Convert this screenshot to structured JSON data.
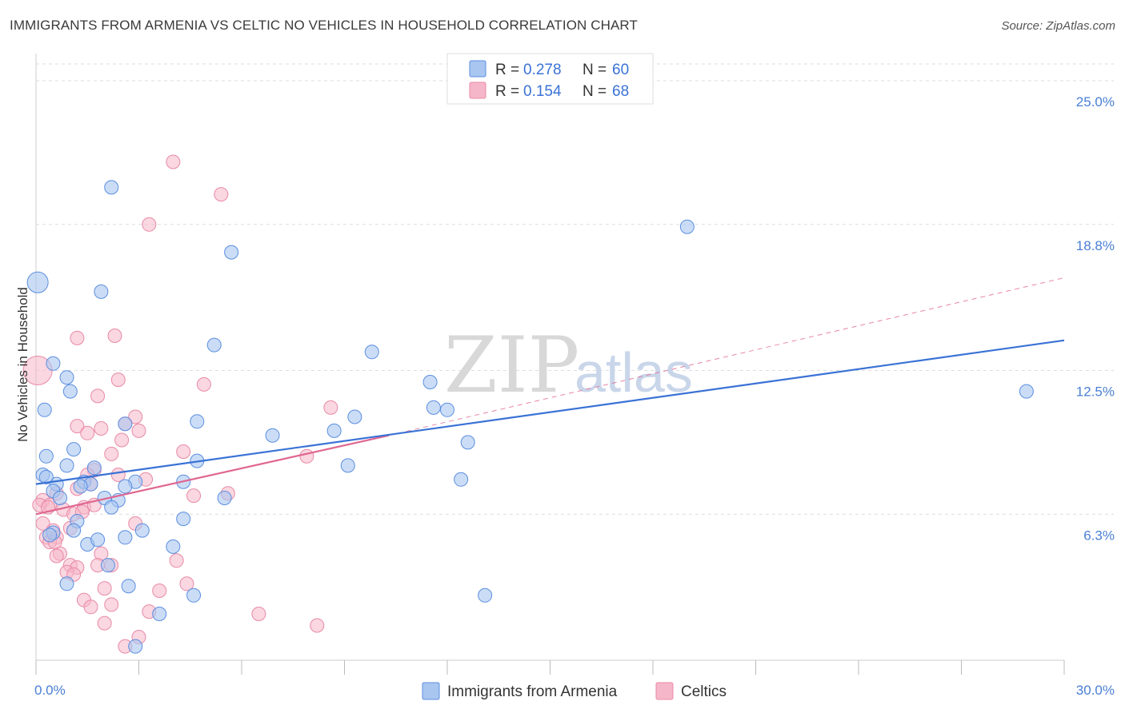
{
  "title": "IMMIGRANTS FROM ARMENIA VS CELTIC NO VEHICLES IN HOUSEHOLD CORRELATION CHART",
  "source": "Source: ZipAtlas.com",
  "watermark": {
    "part1": "ZIP",
    "part2": "atlas"
  },
  "colors": {
    "blue_fill": "#a9c6f0",
    "blue_stroke": "#5b8ee0",
    "blue_line": "#3a72d6",
    "pink_fill": "#f6b6c9",
    "pink_stroke": "#e88aa6",
    "pink_line": "#e06690",
    "grid": "#dddddd",
    "tick_label": "#4a7fd4"
  },
  "legend_top": [
    {
      "r_label": "R = ",
      "r_value": "0.278",
      "n_label": "N = ",
      "n_value": "60"
    },
    {
      "r_label": "R = ",
      "r_value": "0.154",
      "n_label": "N = ",
      "n_value": "68"
    }
  ],
  "chart_data": {
    "type": "scatter",
    "title": "IMMIGRANTS FROM ARMENIA VS CELTIC NO VEHICLES IN HOUSEHOLD CORRELATION CHART",
    "xlabel": "",
    "ylabel": "No Vehicles in Household",
    "xlim": [
      0,
      30
    ],
    "ylim": [
      0,
      26
    ],
    "x_tick_labels": [
      {
        "value": 0,
        "label": "0.0%"
      },
      {
        "value": 30,
        "label": "30.0%"
      }
    ],
    "y_tick_labels": [
      {
        "value": 6.3,
        "label": "6.3%"
      },
      {
        "value": 12.5,
        "label": "12.5%"
      },
      {
        "value": 18.8,
        "label": "18.8%"
      },
      {
        "value": 25.0,
        "label": "25.0%"
      }
    ],
    "x_minor_ticks": [
      0,
      3,
      6,
      9,
      12,
      15,
      18,
      21,
      24,
      27,
      30
    ],
    "grid": true,
    "legend_position": "top-center",
    "series": [
      {
        "name": "Immigrants from Armenia",
        "R": 0.278,
        "N": 60,
        "color": "#a9c6f0",
        "trend": {
          "x0": 0,
          "y0": 7.6,
          "x1": 30,
          "y1": 13.8,
          "style": "solid"
        },
        "points": [
          [
            0.05,
            16.3
          ],
          [
            2.2,
            20.4
          ],
          [
            5.7,
            17.6
          ],
          [
            1.9,
            15.9
          ],
          [
            19.0,
            18.7
          ],
          [
            28.9,
            11.6
          ],
          [
            5.2,
            13.6
          ],
          [
            9.8,
            13.3
          ],
          [
            0.5,
            12.8
          ],
          [
            0.9,
            12.2
          ],
          [
            1.0,
            11.6
          ],
          [
            11.5,
            12.0
          ],
          [
            11.6,
            10.9
          ],
          [
            12.0,
            10.8
          ],
          [
            0.25,
            10.8
          ],
          [
            2.6,
            10.2
          ],
          [
            4.7,
            10.3
          ],
          [
            9.3,
            10.5
          ],
          [
            6.9,
            9.7
          ],
          [
            8.7,
            9.9
          ],
          [
            12.6,
            9.4
          ],
          [
            0.3,
            8.8
          ],
          [
            1.1,
            9.1
          ],
          [
            0.9,
            8.4
          ],
          [
            4.7,
            8.6
          ],
          [
            9.1,
            8.4
          ],
          [
            1.7,
            8.3
          ],
          [
            0.2,
            8.0
          ],
          [
            0.6,
            7.6
          ],
          [
            1.4,
            7.7
          ],
          [
            2.9,
            7.7
          ],
          [
            4.3,
            7.7
          ],
          [
            12.4,
            7.8
          ],
          [
            2.6,
            7.5
          ],
          [
            1.6,
            7.6
          ],
          [
            0.5,
            7.3
          ],
          [
            0.7,
            7.0
          ],
          [
            2.0,
            7.0
          ],
          [
            2.4,
            6.9
          ],
          [
            5.5,
            7.0
          ],
          [
            2.2,
            6.6
          ],
          [
            1.2,
            6.0
          ],
          [
            4.3,
            6.1
          ],
          [
            1.1,
            5.6
          ],
          [
            0.5,
            5.5
          ],
          [
            1.5,
            5.0
          ],
          [
            1.8,
            5.2
          ],
          [
            2.6,
            5.3
          ],
          [
            4.0,
            4.9
          ],
          [
            0.9,
            3.3
          ],
          [
            2.7,
            3.2
          ],
          [
            2.1,
            4.1
          ],
          [
            4.6,
            2.8
          ],
          [
            13.1,
            2.8
          ],
          [
            3.6,
            2.0
          ],
          [
            2.9,
            0.6
          ],
          [
            0.3,
            7.9
          ],
          [
            0.4,
            5.4
          ],
          [
            1.3,
            7.5
          ],
          [
            3.1,
            5.6
          ]
        ]
      },
      {
        "name": "Celtics",
        "R": 0.154,
        "N": 68,
        "color": "#f6b6c9",
        "trend": {
          "x0": 0,
          "y0": 6.3,
          "x1": 10.3,
          "y1": 9.7,
          "style": "solid"
        },
        "trend_extension": {
          "x0": 10.3,
          "y0": 9.7,
          "x1": 30,
          "y1": 16.5,
          "style": "dashed"
        },
        "points": [
          [
            0.05,
            12.5
          ],
          [
            4.0,
            21.5
          ],
          [
            5.4,
            20.1
          ],
          [
            3.3,
            18.8
          ],
          [
            1.2,
            13.9
          ],
          [
            2.3,
            14.0
          ],
          [
            2.4,
            12.1
          ],
          [
            4.9,
            11.9
          ],
          [
            1.8,
            11.4
          ],
          [
            8.6,
            10.9
          ],
          [
            2.9,
            10.5
          ],
          [
            1.2,
            10.1
          ],
          [
            1.9,
            10.0
          ],
          [
            3.0,
            9.9
          ],
          [
            2.6,
            10.2
          ],
          [
            2.5,
            9.5
          ],
          [
            1.5,
            9.8
          ],
          [
            4.3,
            9.0
          ],
          [
            2.2,
            8.9
          ],
          [
            7.9,
            8.8
          ],
          [
            1.7,
            8.2
          ],
          [
            2.4,
            8.0
          ],
          [
            3.2,
            7.8
          ],
          [
            1.5,
            8.0
          ],
          [
            1.2,
            7.4
          ],
          [
            0.6,
            7.2
          ],
          [
            1.6,
            7.6
          ],
          [
            5.6,
            7.2
          ],
          [
            4.6,
            7.1
          ],
          [
            0.2,
            6.9
          ],
          [
            0.4,
            6.7
          ],
          [
            1.4,
            6.6
          ],
          [
            0.8,
            6.5
          ],
          [
            1.7,
            6.7
          ],
          [
            1.1,
            6.3
          ],
          [
            0.2,
            5.9
          ],
          [
            0.5,
            5.6
          ],
          [
            1.0,
            5.7
          ],
          [
            0.3,
            5.3
          ],
          [
            0.6,
            5.3
          ],
          [
            0.4,
            5.1
          ],
          [
            2.9,
            5.9
          ],
          [
            0.7,
            4.6
          ],
          [
            0.6,
            4.5
          ],
          [
            1.9,
            4.6
          ],
          [
            4.1,
            4.3
          ],
          [
            1.0,
            4.1
          ],
          [
            1.2,
            4.0
          ],
          [
            1.8,
            4.1
          ],
          [
            2.2,
            4.1
          ],
          [
            0.9,
            3.8
          ],
          [
            1.1,
            3.7
          ],
          [
            4.4,
            3.3
          ],
          [
            3.6,
            3.0
          ],
          [
            2.0,
            3.1
          ],
          [
            1.4,
            2.6
          ],
          [
            1.6,
            2.3
          ],
          [
            2.2,
            2.4
          ],
          [
            3.3,
            2.1
          ],
          [
            6.5,
            2.0
          ],
          [
            2.0,
            1.6
          ],
          [
            8.2,
            1.5
          ],
          [
            3.0,
            1.0
          ],
          [
            2.6,
            0.6
          ],
          [
            0.1,
            6.7
          ],
          [
            0.35,
            6.6
          ],
          [
            0.55,
            5.1
          ],
          [
            1.35,
            6.4
          ]
        ]
      }
    ]
  },
  "y_axis_label": "No Vehicles in Household",
  "bottom_legend": [
    {
      "label": "Immigrants from Armenia"
    },
    {
      "label": "Celtics"
    }
  ]
}
